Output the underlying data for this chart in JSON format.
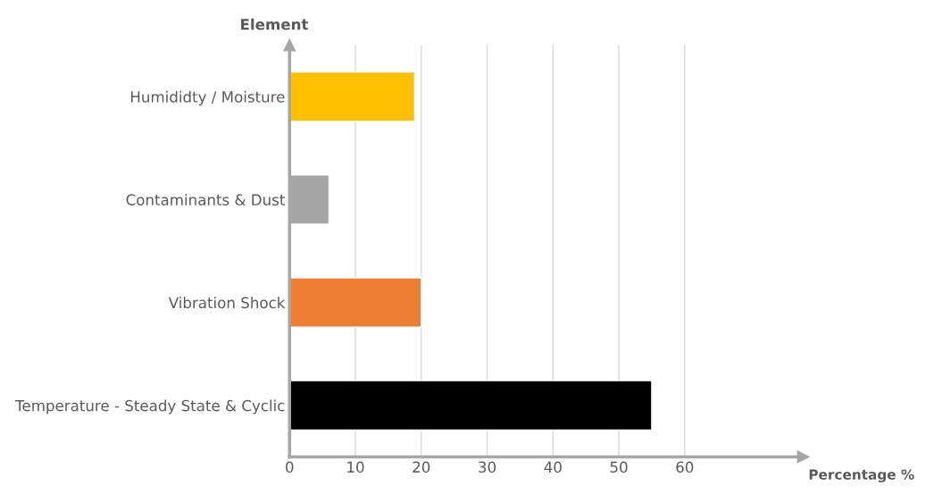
{
  "chart_data": {
    "type": "bar",
    "orientation": "horizontal",
    "xlabel": "Percentage %",
    "ylabel": "Element",
    "categories": [
      "Humididty / Moisture",
      "Contaminants & Dust",
      "Vibration Shock",
      "Temperature - Steady State & Cyclic"
    ],
    "values": [
      19,
      6,
      20,
      55
    ],
    "colors": [
      "#ffc000",
      "#a5a5a5",
      "#ed7d31",
      "#000000"
    ],
    "xlim": [
      0,
      78
    ],
    "xticks": [
      0,
      10,
      20,
      30,
      40,
      50,
      60
    ],
    "grid": "x",
    "legend": false
  }
}
